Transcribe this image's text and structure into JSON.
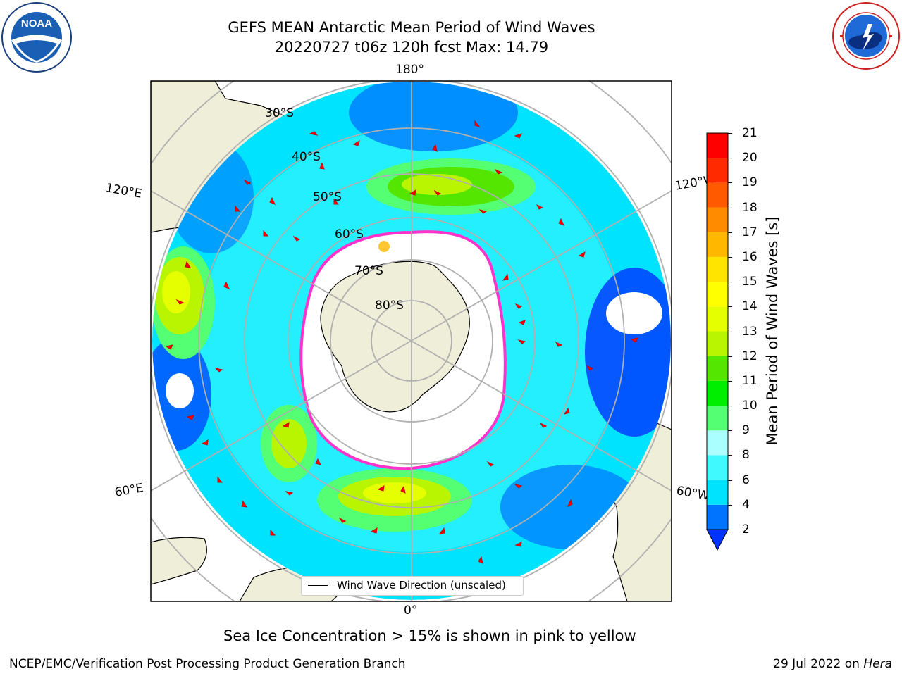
{
  "title": {
    "line1": "GEFS MEAN Antarctic Mean Period of Wind Waves",
    "line2": "20220727 t06z 120h fcst   Max: 14.79"
  },
  "logos": {
    "left": {
      "name": "noaa-logo",
      "text": "NOAA",
      "ring_text": "NATIONAL OCEANIC AND ATMOSPHERIC ADMINISTRATION · U.S. DEPARTMENT OF COMMERCE"
    },
    "right": {
      "name": "nws-logo",
      "ring_text": "NATIONAL WEATHER SERVICE"
    }
  },
  "map": {
    "projection": "South Polar Stereographic",
    "longitude_labels": {
      "top": "180°",
      "bottom": "0°",
      "upper_left": "120°E",
      "upper_right": "120°W",
      "lower_left": "60°E",
      "lower_right": "60°W"
    },
    "latitude_labels": [
      "30°S",
      "40°S",
      "50°S",
      "60°S",
      "70°S",
      "80°S"
    ],
    "legend": "Wind Wave Direction (unscaled)"
  },
  "colorbar": {
    "label": "Mean Period of Wind Waves [s]",
    "ticks": [
      "21",
      "20",
      "19",
      "18",
      "17",
      "16",
      "15",
      "14",
      "13",
      "12",
      "11",
      "10",
      "9",
      "8",
      "6",
      "4",
      "2"
    ],
    "levels_bottom_to_top": [
      2,
      4,
      6,
      8,
      9,
      10,
      11,
      12,
      13,
      14,
      15,
      16,
      17,
      18,
      19,
      20,
      21
    ],
    "colors_bottom_to_top": [
      "#0073ff",
      "#00e3ff",
      "#3ff9ff",
      "#aaffff",
      "#55ff73",
      "#00ee00",
      "#55e600",
      "#b9f500",
      "#e6ff00",
      "#ffff00",
      "#ffe400",
      "#ffb700",
      "#ff8c00",
      "#ff5a00",
      "#ff2a00",
      "#ff0000"
    ],
    "extend_min_color": "#0033ff"
  },
  "note": "Sea Ice Concentration > 15% is shown in pink to yellow",
  "footer": {
    "left": "NCEP/EMC/Verification Post Processing Product Generation Branch",
    "right_date": "29 Jul 2022 on ",
    "right_machine": "Hera"
  }
}
